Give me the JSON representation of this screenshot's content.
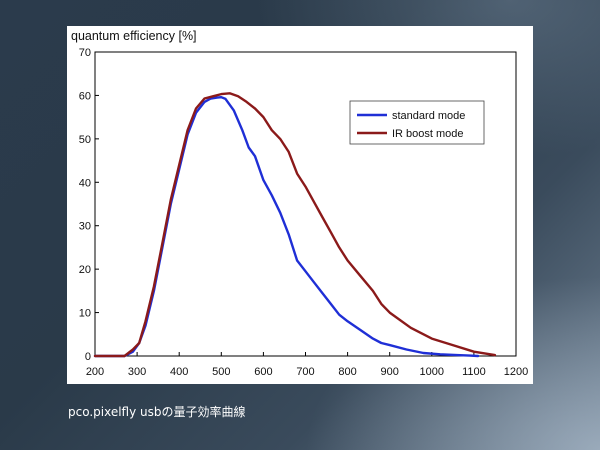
{
  "caption": "pco.pixelfly usbの量子効率曲線",
  "chart_data": {
    "type": "line",
    "title": "quantum efficiency [%]",
    "xlabel": "",
    "ylabel": "",
    "xlim": [
      200,
      1200
    ],
    "ylim": [
      0,
      70
    ],
    "x_ticks": [
      200,
      300,
      400,
      500,
      600,
      700,
      800,
      900,
      1000,
      1100,
      1200
    ],
    "y_ticks": [
      0,
      10,
      20,
      30,
      40,
      50,
      60,
      70
    ],
    "grid": false,
    "legend_position": "top-right",
    "series": [
      {
        "name": "standard mode",
        "color": "#1f2fd6",
        "x": [
          200,
          270,
          290,
          305,
          320,
          340,
          360,
          380,
          400,
          420,
          440,
          460,
          475,
          490,
          500,
          510,
          530,
          550,
          565,
          580,
          600,
          620,
          640,
          660,
          680,
          700,
          720,
          740,
          760,
          780,
          800,
          830,
          860,
          880,
          900,
          940,
          980,
          1020,
          1060,
          1090,
          1110
        ],
        "y": [
          0,
          0,
          1,
          3,
          7,
          15,
          25,
          35,
          43,
          51,
          56,
          58.5,
          59.3,
          59.5,
          59.6,
          59.2,
          56.5,
          52,
          48,
          46,
          40.5,
          37,
          33,
          28,
          22,
          19.5,
          17,
          14.5,
          12,
          9.5,
          8,
          6,
          4,
          3,
          2.5,
          1.5,
          0.7,
          0.4,
          0.2,
          0.1,
          0
        ]
      },
      {
        "name": "IR boost mode",
        "color": "#8b1a1a",
        "x": [
          200,
          270,
          290,
          305,
          320,
          340,
          360,
          380,
          400,
          420,
          440,
          460,
          480,
          500,
          520,
          540,
          560,
          580,
          600,
          620,
          640,
          660,
          680,
          700,
          720,
          740,
          760,
          780,
          800,
          830,
          860,
          880,
          900,
          950,
          1000,
          1050,
          1100,
          1150
        ],
        "y": [
          0,
          0,
          1.5,
          3,
          8,
          16,
          26,
          36,
          44,
          52,
          57,
          59.3,
          59.8,
          60.3,
          60.5,
          59.8,
          58.5,
          57,
          55,
          52,
          50,
          47,
          42,
          39,
          35.5,
          32,
          28.5,
          25,
          22,
          18.5,
          15,
          12,
          10,
          6.5,
          4,
          2.5,
          1,
          0.2
        ]
      }
    ]
  }
}
